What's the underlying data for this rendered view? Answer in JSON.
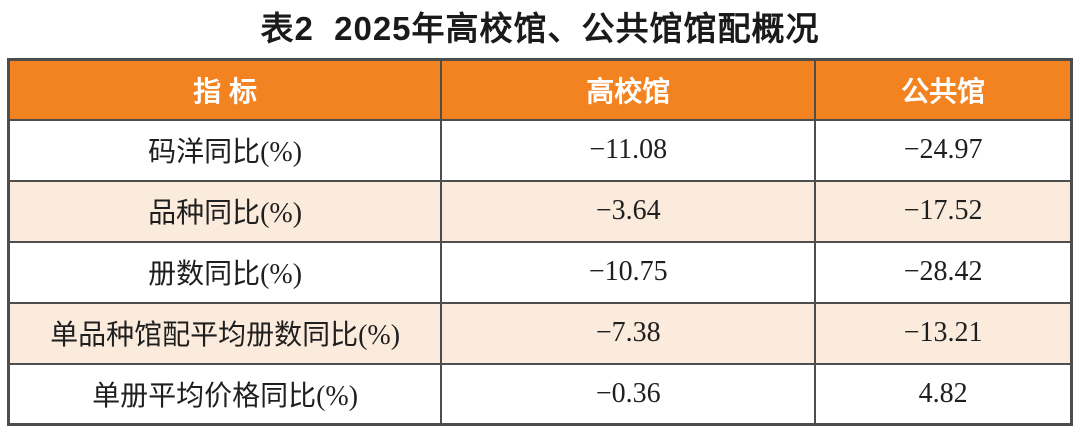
{
  "title": "表2  2025年高校馆、公共馆馆配概况",
  "colors": {
    "header_bg": "#f38220",
    "alt_row_bg": "#fbebdd",
    "row_bg": "#ffffff",
    "grid_line": "#4d4d4d",
    "header_text": "#ffffff",
    "body_text": "#1f1f1f"
  },
  "table": {
    "columns": [
      "指 标",
      "高校馆",
      "公共馆"
    ],
    "rows": [
      {
        "label": "码洋同比(%)",
        "university": "−11.08",
        "public": "−24.97"
      },
      {
        "label": "品种同比(%)",
        "university": "−3.64",
        "public": "−17.52"
      },
      {
        "label": "册数同比(%)",
        "university": "−10.75",
        "public": "−28.42"
      },
      {
        "label": "单品种馆配平均册数同比(%)",
        "university": "−7.38",
        "public": "−13.21"
      },
      {
        "label": "单册平均价格同比(%)",
        "university": "−0.36",
        "public": "4.82"
      }
    ]
  },
  "chart_data": {
    "type": "table",
    "title": "表2  2025年高校馆、公共馆馆配概况",
    "categories": [
      "码洋同比(%)",
      "品种同比(%)",
      "册数同比(%)",
      "单品种馆配平均册数同比(%)",
      "单册平均价格同比(%)"
    ],
    "series": [
      {
        "name": "高校馆",
        "values": [
          -11.08,
          -3.64,
          -10.75,
          -7.38,
          -0.36
        ]
      },
      {
        "name": "公共馆",
        "values": [
          -24.97,
          -17.52,
          -28.42,
          -13.21,
          4.82
        ]
      }
    ]
  }
}
